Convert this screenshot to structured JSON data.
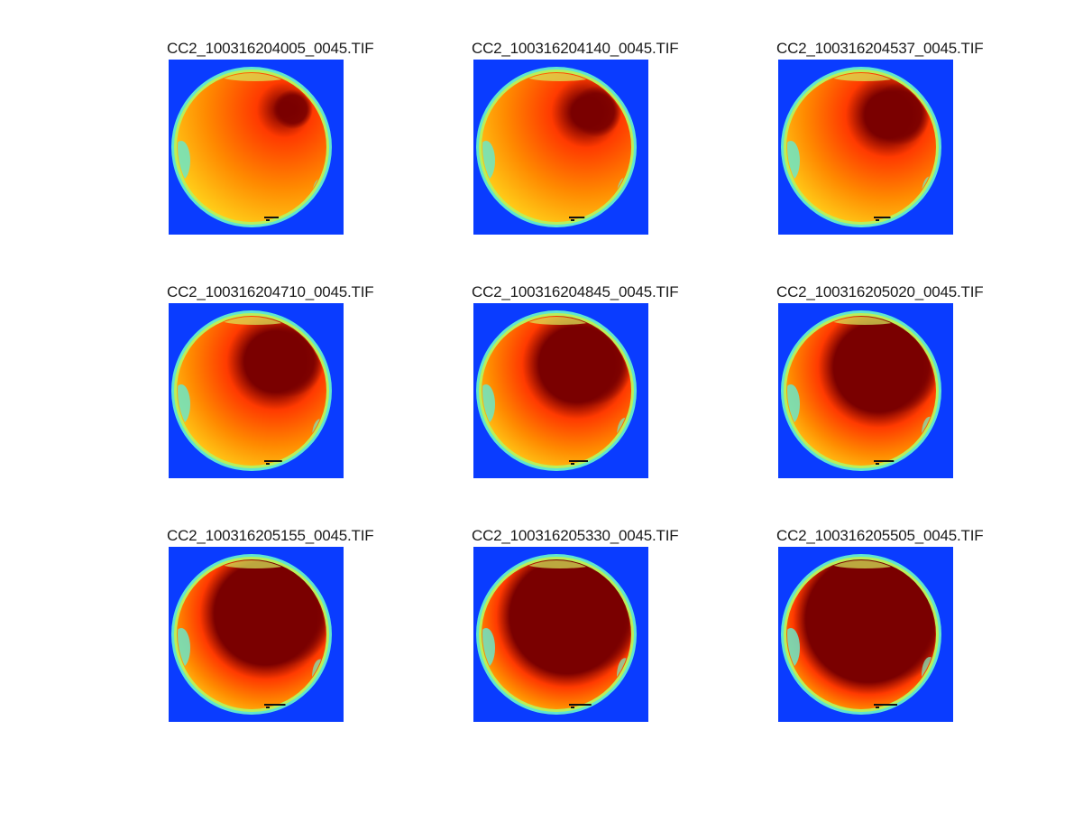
{
  "figure": {
    "panels": [
      {
        "title": "CC2_100316204005_0045.TIF",
        "stage": 0,
        "palette": {
          "background": "#0a3cff",
          "rim": "#3fd0e0",
          "warm": "#ffd21a",
          "hot": "#ff3a00",
          "dark": "#7a0000"
        }
      },
      {
        "title": "CC2_100316204140_0045.TIF",
        "stage": 1,
        "palette": {
          "background": "#0a3cff",
          "rim": "#3fd0e0",
          "warm": "#ffd21a",
          "hot": "#ff3a00",
          "dark": "#7a0000"
        }
      },
      {
        "title": "CC2_100316204537_0045.TIF",
        "stage": 2,
        "palette": {
          "background": "#0a3cff",
          "rim": "#3fd0e0",
          "warm": "#ffd21a",
          "hot": "#ff3a00",
          "dark": "#7a0000"
        }
      },
      {
        "title": "CC2_100316204710_0045.TIF",
        "stage": 3,
        "palette": {
          "background": "#0a3cff",
          "rim": "#3fd0e0",
          "warm": "#ffd21a",
          "hot": "#ff3a00",
          "dark": "#7a0000"
        }
      },
      {
        "title": "CC2_100316204845_0045.TIF",
        "stage": 4,
        "palette": {
          "background": "#0a3cff",
          "rim": "#3fd0e0",
          "warm": "#ffd21a",
          "hot": "#ff3a00",
          "dark": "#7a0000"
        }
      },
      {
        "title": "CC2_100316205020_0045.TIF",
        "stage": 5,
        "palette": {
          "background": "#0a3cff",
          "rim": "#3fd0e0",
          "warm": "#ffd21a",
          "hot": "#ff3a00",
          "dark": "#7a0000"
        }
      },
      {
        "title": "CC2_100316205155_0045.TIF",
        "stage": 6,
        "palette": {
          "background": "#0a3cff",
          "rim": "#3fd0e0",
          "warm": "#ffd21a",
          "hot": "#ff3a00",
          "dark": "#7a0000"
        }
      },
      {
        "title": "CC2_100316205330_0045.TIF",
        "stage": 7,
        "palette": {
          "background": "#0a3cff",
          "rim": "#3fd0e0",
          "warm": "#ffd21a",
          "hot": "#ff3a00",
          "dark": "#7a0000"
        }
      },
      {
        "title": "CC2_100316205505_0045.TIF",
        "stage": 8,
        "palette": {
          "background": "#0a3cff",
          "rim": "#3fd0e0",
          "warm": "#ffd21a",
          "hot": "#ff3a00",
          "dark": "#7a0000"
        }
      }
    ]
  }
}
